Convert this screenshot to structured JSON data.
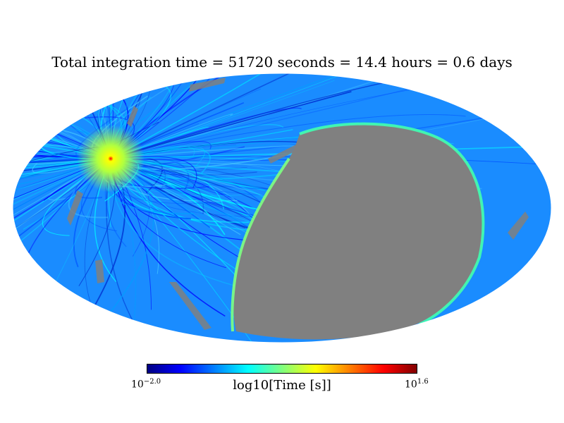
{
  "title": "Total integration time = 51720 seconds = 14.4 hours = 0.6 days",
  "map": {
    "projection": "mollweide",
    "bad_color": "#808080",
    "colormap": "jet"
  },
  "colorbar": {
    "label": "log10[Time [s]]",
    "min_base": "10",
    "min_exp": "−2.0",
    "max_base": "10",
    "max_exp": "1.6",
    "colors": [
      "#00007f",
      "#0000ff",
      "#007fff",
      "#00ffff",
      "#7fff7f",
      "#ffff00",
      "#ff7f00",
      "#ff0000",
      "#7f0000"
    ]
  }
}
